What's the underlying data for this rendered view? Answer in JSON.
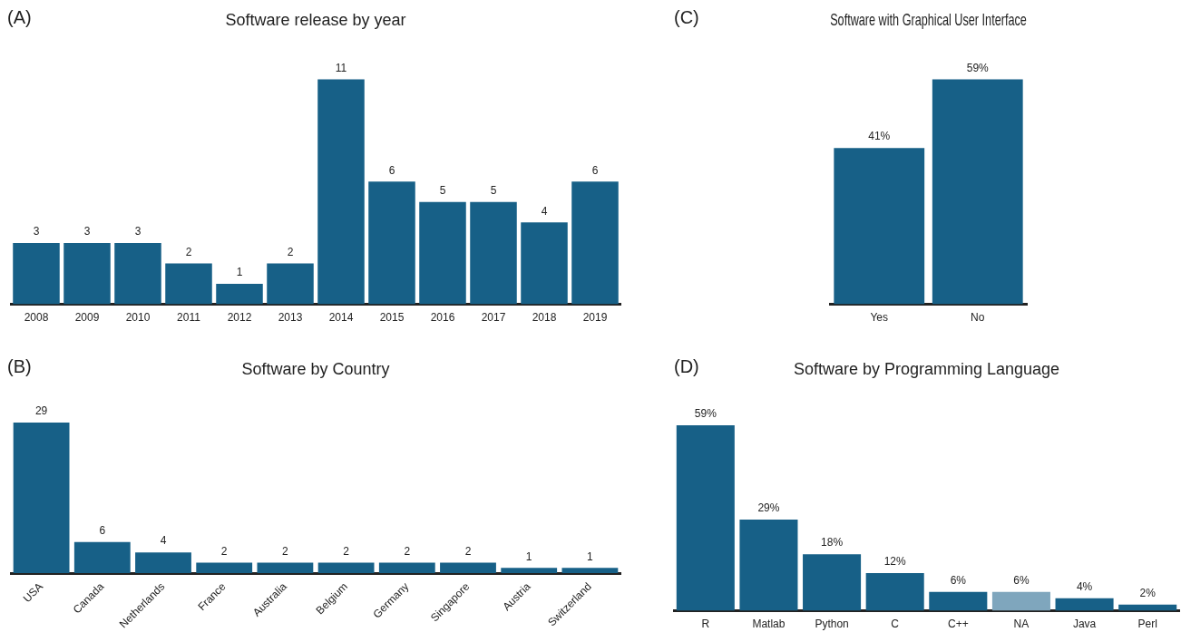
{
  "chart_data": [
    {
      "type": "bar",
      "title": "Software release by year",
      "annotations": [
        "(A)"
      ],
      "categories": [
        "2008",
        "2009",
        "2010",
        "2011",
        "2012",
        "2013",
        "2014",
        "2015",
        "2016",
        "2017",
        "2018",
        "2019"
      ],
      "values": [
        3,
        3,
        3,
        2,
        1,
        2,
        11,
        6,
        5,
        5,
        4,
        6
      ],
      "color": "#176087",
      "data_labels": true,
      "tick_labels": "x"
    },
    {
      "type": "bar",
      "title": "Software with Graphical User Interface",
      "annotations": [
        "(C)"
      ],
      "categories": [
        "Yes",
        "No"
      ],
      "values": [
        41,
        59
      ],
      "value_labels": [
        "41%",
        "59%"
      ],
      "color": "#176087",
      "tick_labels": "x"
    },
    {
      "type": "bar",
      "title": "Software by Country",
      "annotations": [
        "(B)"
      ],
      "categories": [
        "USA",
        "Canada",
        "Netherlands",
        "France",
        "Australia",
        "Belgium",
        "Germany",
        "Singapore",
        "Austria",
        "Switzerland"
      ],
      "values": [
        29,
        6,
        4,
        2,
        2,
        2,
        2,
        2,
        1,
        1
      ],
      "color": "#176087",
      "data_labels": true,
      "tick_labels": "x"
    },
    {
      "type": "bar",
      "title": "Software by Programming Language",
      "annotations": [
        "(D)"
      ],
      "categories": [
        "R",
        "Matlab",
        "Python",
        "C",
        "C++",
        "NA",
        "Java",
        "Perl"
      ],
      "values": [
        59,
        29,
        18,
        12,
        6,
        6,
        4,
        2
      ],
      "value_labels": [
        "59%",
        "29%",
        "18%",
        "12%",
        "6%",
        "6%",
        "4%",
        "2%"
      ],
      "colors": [
        "#176087",
        "#176087",
        "#176087",
        "#176087",
        "#176087",
        "#7fa6bd",
        "#176087",
        "#176087"
      ],
      "tick_labels": "x"
    }
  ]
}
